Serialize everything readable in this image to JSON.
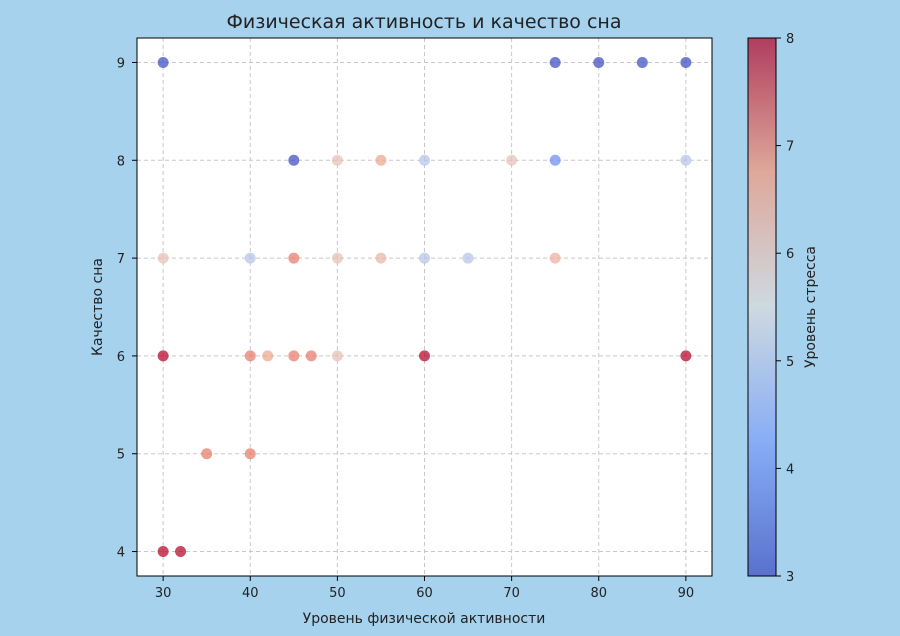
{
  "chart_data": {
    "type": "scatter",
    "title": "Физическая активность и качество сна",
    "xlabel": "Уровень физической активности",
    "ylabel": "Качество сна",
    "xlim": [
      27,
      93
    ],
    "ylim": [
      3.75,
      9.25
    ],
    "xticks": [
      30,
      40,
      50,
      60,
      70,
      80,
      90
    ],
    "yticks": [
      4,
      5,
      6,
      7,
      8,
      9
    ],
    "grid": true,
    "colorbar": {
      "label": "Уровень стресса",
      "min": 3,
      "max": 8,
      "ticks": [
        3,
        4,
        5,
        6,
        7,
        8
      ],
      "colormap": "coolwarm"
    },
    "points": [
      {
        "x": 30,
        "y": 9,
        "c": 3
      },
      {
        "x": 75,
        "y": 9,
        "c": 3
      },
      {
        "x": 80,
        "y": 9,
        "c": 3
      },
      {
        "x": 85,
        "y": 9,
        "c": 3
      },
      {
        "x": 90,
        "y": 9,
        "c": 3
      },
      {
        "x": 45,
        "y": 8,
        "c": 3
      },
      {
        "x": 50,
        "y": 8,
        "c": 6
      },
      {
        "x": 55,
        "y": 8,
        "c": 6.5
      },
      {
        "x": 60,
        "y": 8,
        "c": 5
      },
      {
        "x": 70,
        "y": 8,
        "c": 6
      },
      {
        "x": 75,
        "y": 8,
        "c": 4
      },
      {
        "x": 90,
        "y": 8,
        "c": 5
      },
      {
        "x": 30,
        "y": 7,
        "c": 6
      },
      {
        "x": 40,
        "y": 7,
        "c": 5
      },
      {
        "x": 45,
        "y": 7,
        "c": 7
      },
      {
        "x": 50,
        "y": 7,
        "c": 6
      },
      {
        "x": 55,
        "y": 7,
        "c": 6.2
      },
      {
        "x": 60,
        "y": 7,
        "c": 5
      },
      {
        "x": 65,
        "y": 7,
        "c": 5
      },
      {
        "x": 75,
        "y": 7,
        "c": 6.3
      },
      {
        "x": 30,
        "y": 6,
        "c": 8
      },
      {
        "x": 40,
        "y": 6,
        "c": 7
      },
      {
        "x": 42,
        "y": 6,
        "c": 6.5
      },
      {
        "x": 45,
        "y": 6,
        "c": 7
      },
      {
        "x": 47,
        "y": 6,
        "c": 7
      },
      {
        "x": 50,
        "y": 6,
        "c": 6
      },
      {
        "x": 60,
        "y": 6,
        "c": 8
      },
      {
        "x": 90,
        "y": 6,
        "c": 8
      },
      {
        "x": 35,
        "y": 5,
        "c": 7
      },
      {
        "x": 40,
        "y": 5,
        "c": 7
      },
      {
        "x": 30,
        "y": 4,
        "c": 8
      },
      {
        "x": 32,
        "y": 4,
        "c": 8
      }
    ]
  }
}
